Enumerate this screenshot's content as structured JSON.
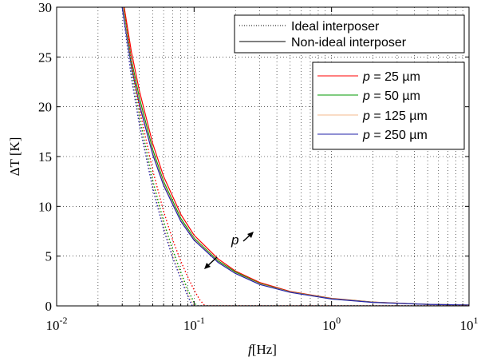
{
  "chart_data": {
    "type": "line",
    "xlabel_var": "f",
    "xlabel_unit": "[Hz]",
    "ylabel": "ΔT [K]",
    "xscale": "log",
    "xlim": [
      0.01,
      10
    ],
    "ylim": [
      0,
      30
    ],
    "grid": true,
    "x_ticks": [
      {
        "value": 0.01,
        "base": "10",
        "exp": "-2"
      },
      {
        "value": 0.1,
        "base": "10",
        "exp": "-1"
      },
      {
        "value": 1,
        "base": "10",
        "exp": "0"
      },
      {
        "value": 10,
        "base": "10",
        "exp": "1"
      }
    ],
    "y_ticks": [
      0,
      5,
      10,
      15,
      20,
      25,
      30
    ],
    "style_legend": {
      "placement": "top-right",
      "entries": [
        {
          "label": "Ideal interposer",
          "dash": "dotted"
        },
        {
          "label": "Non-ideal interposer",
          "dash": "solid"
        }
      ]
    },
    "pitch_legend": {
      "placement": "right",
      "entries": [
        {
          "var": "p",
          "label": " = 25 µm",
          "color": "#ff0000"
        },
        {
          "var": "p",
          "label": " = 50 µm",
          "color": "#009900"
        },
        {
          "var": "p",
          "label": " = 125 µm",
          "color": "#f5b88c"
        },
        {
          "var": "p",
          "label": " = 250 µm",
          "color": "#2222aa"
        }
      ]
    },
    "annotation": {
      "text": "p",
      "direction": "increasing p shifts curves left"
    },
    "series": [
      {
        "name": "p = 25 µm, Non-ideal interposer",
        "color": "#ff0000",
        "dash": "solid",
        "x": [
          0.031,
          0.035,
          0.04,
          0.05,
          0.06,
          0.08,
          0.1,
          0.15,
          0.2,
          0.3,
          0.5,
          1,
          2,
          5,
          10
        ],
        "y": [
          30,
          25.5,
          21.6,
          16.3,
          13.0,
          9.2,
          7.1,
          4.7,
          3.5,
          2.35,
          1.45,
          0.75,
          0.38,
          0.15,
          0.08
        ]
      },
      {
        "name": "p = 50 µm, Non-ideal interposer",
        "color": "#009900",
        "dash": "solid",
        "x": [
          0.0305,
          0.035,
          0.04,
          0.05,
          0.06,
          0.08,
          0.1,
          0.15,
          0.2,
          0.3,
          0.5,
          1,
          2,
          5,
          10
        ],
        "y": [
          30,
          24.7,
          20.9,
          15.7,
          12.5,
          8.8,
          6.8,
          4.5,
          3.4,
          2.25,
          1.4,
          0.72,
          0.37,
          0.15,
          0.08
        ]
      },
      {
        "name": "p = 125 µm, Non-ideal interposer",
        "color": "#f5b88c",
        "dash": "solid",
        "x": [
          0.0303,
          0.035,
          0.04,
          0.05,
          0.06,
          0.08,
          0.1,
          0.15,
          0.2,
          0.3,
          0.5,
          1,
          2,
          5,
          10
        ],
        "y": [
          30,
          24.3,
          20.5,
          15.4,
          12.3,
          8.6,
          6.7,
          4.4,
          3.3,
          2.2,
          1.38,
          0.7,
          0.36,
          0.15,
          0.08
        ]
      },
      {
        "name": "p = 250 µm, Non-ideal interposer",
        "color": "#2222aa",
        "dash": "solid",
        "x": [
          0.03,
          0.035,
          0.04,
          0.05,
          0.06,
          0.08,
          0.1,
          0.15,
          0.2,
          0.3,
          0.5,
          1,
          2,
          5,
          10
        ],
        "y": [
          30,
          24.0,
          20.2,
          15.2,
          12.1,
          8.5,
          6.6,
          4.35,
          3.25,
          2.15,
          1.36,
          0.69,
          0.35,
          0.15,
          0.08
        ]
      },
      {
        "name": "p = 25 µm, Ideal interposer",
        "color": "#ff0000",
        "dash": "dotted",
        "x": [
          0.031,
          0.035,
          0.04,
          0.05,
          0.06,
          0.07,
          0.08,
          0.09,
          0.1,
          0.11,
          0.12,
          1,
          10
        ],
        "y": [
          30,
          24.5,
          19.8,
          13.6,
          9.5,
          6.6,
          4.5,
          2.9,
          1.6,
          0.6,
          0,
          0,
          0
        ]
      },
      {
        "name": "p = 50 µm, Ideal interposer",
        "color": "#009900",
        "dash": "dotted",
        "x": [
          0.0305,
          0.035,
          0.04,
          0.05,
          0.06,
          0.07,
          0.08,
          0.09,
          0.1,
          0.105,
          1,
          10
        ],
        "y": [
          30,
          23.7,
          19.0,
          12.6,
          8.5,
          5.6,
          3.4,
          1.6,
          0.35,
          0,
          0,
          0
        ]
      },
      {
        "name": "p = 125 µm, Ideal interposer",
        "color": "#f5b88c",
        "dash": "dotted",
        "x": [
          0.0303,
          0.035,
          0.04,
          0.05,
          0.06,
          0.07,
          0.08,
          0.09,
          0.1,
          1,
          10
        ],
        "y": [
          30,
          23.2,
          18.5,
          12.1,
          8.0,
          5.1,
          3.0,
          1.2,
          0,
          0,
          0
        ]
      },
      {
        "name": "p = 250 µm, Ideal interposer",
        "color": "#2222aa",
        "dash": "dotted",
        "x": [
          0.03,
          0.035,
          0.04,
          0.05,
          0.06,
          0.07,
          0.08,
          0.09,
          0.097,
          1,
          10
        ],
        "y": [
          30,
          22.9,
          18.2,
          11.8,
          7.7,
          4.8,
          2.7,
          1.0,
          0,
          0,
          0
        ]
      }
    ]
  }
}
